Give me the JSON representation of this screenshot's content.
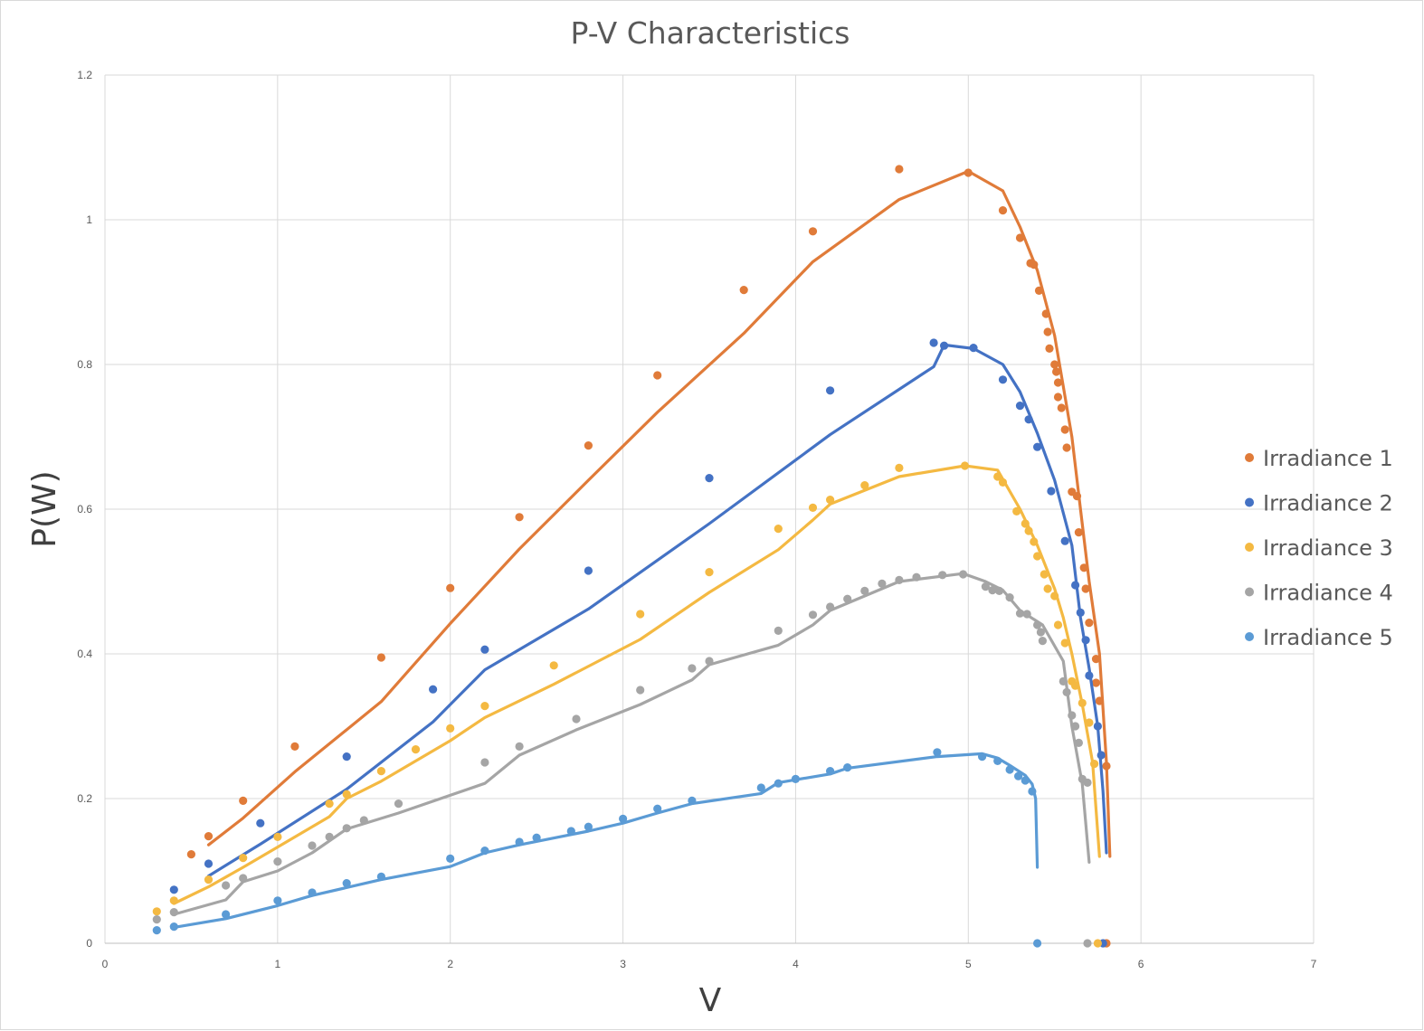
{
  "chart_data": {
    "type": "scatter",
    "title": "P-V Characteristics",
    "xlabel": "V",
    "ylabel": "P(W)",
    "xlim": [
      0,
      7
    ],
    "ylim": [
      0,
      1.2
    ],
    "xticks": [
      "0",
      "1",
      "2",
      "3",
      "4",
      "5",
      "6",
      "7"
    ],
    "yticks": [
      "0",
      "0.2",
      "0.4",
      "0.6",
      "0.8",
      "1",
      "1.2"
    ],
    "grid": true,
    "legend_position": "right",
    "series": [
      {
        "name": "Irradiance 1",
        "color": "#E07B39",
        "points": [
          [
            0.5,
            0.123
          ],
          [
            0.6,
            0.148
          ],
          [
            0.8,
            0.197
          ],
          [
            1.1,
            0.272
          ],
          [
            1.6,
            0.395
          ],
          [
            2.0,
            0.491
          ],
          [
            2.4,
            0.589
          ],
          [
            2.8,
            0.688
          ],
          [
            3.2,
            0.785
          ],
          [
            3.7,
            0.903
          ],
          [
            4.1,
            0.984
          ],
          [
            4.6,
            1.07
          ],
          [
            5.0,
            1.065
          ],
          [
            5.2,
            1.013
          ],
          [
            5.3,
            0.975
          ],
          [
            5.36,
            0.94
          ],
          [
            5.38,
            0.938
          ],
          [
            5.41,
            0.902
          ],
          [
            5.45,
            0.87
          ],
          [
            5.46,
            0.845
          ],
          [
            5.47,
            0.822
          ],
          [
            5.5,
            0.8
          ],
          [
            5.51,
            0.79
          ],
          [
            5.52,
            0.775
          ],
          [
            5.52,
            0.755
          ],
          [
            5.54,
            0.74
          ],
          [
            5.56,
            0.71
          ],
          [
            5.57,
            0.685
          ],
          [
            5.6,
            0.624
          ],
          [
            5.63,
            0.618
          ],
          [
            5.64,
            0.568
          ],
          [
            5.67,
            0.519
          ],
          [
            5.68,
            0.49
          ],
          [
            5.7,
            0.443
          ],
          [
            5.74,
            0.393
          ],
          [
            5.74,
            0.36
          ],
          [
            5.76,
            0.335
          ],
          [
            5.8,
            0.245
          ],
          [
            5.8,
            0.0
          ]
        ],
        "line": [
          [
            0.6,
            0.136
          ],
          [
            0.8,
            0.173
          ],
          [
            1.1,
            0.237
          ],
          [
            1.6,
            0.334
          ],
          [
            2.0,
            0.442
          ],
          [
            2.4,
            0.545
          ],
          [
            2.8,
            0.64
          ],
          [
            3.2,
            0.734
          ],
          [
            3.7,
            0.843
          ],
          [
            4.1,
            0.942
          ],
          [
            4.6,
            1.028
          ],
          [
            5.0,
            1.067
          ],
          [
            5.2,
            1.04
          ],
          [
            5.3,
            0.99
          ],
          [
            5.4,
            0.93
          ],
          [
            5.5,
            0.84
          ],
          [
            5.6,
            0.7
          ],
          [
            5.65,
            0.6
          ],
          [
            5.7,
            0.5
          ],
          [
            5.76,
            0.4
          ],
          [
            5.8,
            0.25
          ],
          [
            5.82,
            0.12
          ]
        ]
      },
      {
        "name": "Irradiance 2",
        "color": "#4472C4",
        "points": [
          [
            0.4,
            0.074
          ],
          [
            0.6,
            0.11
          ],
          [
            0.9,
            0.166
          ],
          [
            1.4,
            0.258
          ],
          [
            1.9,
            0.351
          ],
          [
            2.2,
            0.406
          ],
          [
            2.8,
            0.515
          ],
          [
            3.5,
            0.643
          ],
          [
            4.2,
            0.764
          ],
          [
            4.8,
            0.83
          ],
          [
            4.86,
            0.826
          ],
          [
            5.03,
            0.823
          ],
          [
            5.2,
            0.779
          ],
          [
            5.3,
            0.743
          ],
          [
            5.35,
            0.724
          ],
          [
            5.4,
            0.686
          ],
          [
            5.48,
            0.625
          ],
          [
            5.56,
            0.556
          ],
          [
            5.62,
            0.495
          ],
          [
            5.65,
            0.457
          ],
          [
            5.68,
            0.419
          ],
          [
            5.7,
            0.37
          ],
          [
            5.75,
            0.3
          ],
          [
            5.77,
            0.26
          ],
          [
            5.78,
            0.0
          ]
        ],
        "line": [
          [
            0.6,
            0.093
          ],
          [
            0.9,
            0.137
          ],
          [
            1.4,
            0.213
          ],
          [
            1.9,
            0.306
          ],
          [
            2.2,
            0.378
          ],
          [
            2.8,
            0.462
          ],
          [
            3.5,
            0.58
          ],
          [
            4.2,
            0.703
          ],
          [
            4.8,
            0.797
          ],
          [
            4.86,
            0.827
          ],
          [
            5.03,
            0.822
          ],
          [
            5.2,
            0.8
          ],
          [
            5.3,
            0.762
          ],
          [
            5.4,
            0.705
          ],
          [
            5.5,
            0.64
          ],
          [
            5.6,
            0.55
          ],
          [
            5.65,
            0.45
          ],
          [
            5.7,
            0.38
          ],
          [
            5.75,
            0.3
          ],
          [
            5.78,
            0.21
          ],
          [
            5.8,
            0.125
          ]
        ]
      },
      {
        "name": "Irradiance 3",
        "color": "#F4B942",
        "points": [
          [
            0.3,
            0.044
          ],
          [
            0.4,
            0.059
          ],
          [
            0.6,
            0.088
          ],
          [
            0.8,
            0.118
          ],
          [
            1.0,
            0.147
          ],
          [
            1.3,
            0.193
          ],
          [
            1.4,
            0.206
          ],
          [
            1.6,
            0.238
          ],
          [
            1.8,
            0.268
          ],
          [
            2.0,
            0.297
          ],
          [
            2.2,
            0.328
          ],
          [
            2.6,
            0.384
          ],
          [
            3.1,
            0.455
          ],
          [
            3.5,
            0.513
          ],
          [
            3.9,
            0.573
          ],
          [
            4.1,
            0.602
          ],
          [
            4.2,
            0.613
          ],
          [
            4.4,
            0.633
          ],
          [
            4.6,
            0.657
          ],
          [
            4.98,
            0.66
          ],
          [
            5.17,
            0.645
          ],
          [
            5.2,
            0.637
          ],
          [
            5.28,
            0.597
          ],
          [
            5.33,
            0.58
          ],
          [
            5.35,
            0.57
          ],
          [
            5.38,
            0.555
          ],
          [
            5.4,
            0.535
          ],
          [
            5.44,
            0.51
          ],
          [
            5.46,
            0.49
          ],
          [
            5.5,
            0.48
          ],
          [
            5.52,
            0.44
          ],
          [
            5.56,
            0.415
          ],
          [
            5.6,
            0.362
          ],
          [
            5.62,
            0.356
          ],
          [
            5.66,
            0.332
          ],
          [
            5.7,
            0.305
          ],
          [
            5.73,
            0.248
          ],
          [
            5.75,
            0.0
          ]
        ],
        "line": [
          [
            0.4,
            0.055
          ],
          [
            0.6,
            0.078
          ],
          [
            0.8,
            0.105
          ],
          [
            1.0,
            0.133
          ],
          [
            1.3,
            0.175
          ],
          [
            1.4,
            0.2
          ],
          [
            1.6,
            0.224
          ],
          [
            2.0,
            0.28
          ],
          [
            2.2,
            0.312
          ],
          [
            2.6,
            0.358
          ],
          [
            3.1,
            0.42
          ],
          [
            3.5,
            0.485
          ],
          [
            3.9,
            0.544
          ],
          [
            4.1,
            0.585
          ],
          [
            4.2,
            0.607
          ],
          [
            4.6,
            0.645
          ],
          [
            4.98,
            0.66
          ],
          [
            5.17,
            0.654
          ],
          [
            5.3,
            0.6
          ],
          [
            5.4,
            0.55
          ],
          [
            5.5,
            0.49
          ],
          [
            5.55,
            0.45
          ],
          [
            5.6,
            0.4
          ],
          [
            5.66,
            0.33
          ],
          [
            5.72,
            0.25
          ],
          [
            5.76,
            0.12
          ]
        ]
      },
      {
        "name": "Irradiance 4",
        "color": "#A5A5A5",
        "points": [
          [
            0.3,
            0.033
          ],
          [
            0.4,
            0.043
          ],
          [
            0.7,
            0.08
          ],
          [
            0.8,
            0.09
          ],
          [
            1.0,
            0.113
          ],
          [
            1.2,
            0.135
          ],
          [
            1.3,
            0.147
          ],
          [
            1.4,
            0.159
          ],
          [
            1.5,
            0.17
          ],
          [
            1.7,
            0.193
          ],
          [
            2.2,
            0.25
          ],
          [
            2.4,
            0.272
          ],
          [
            2.73,
            0.31
          ],
          [
            3.1,
            0.35
          ],
          [
            3.4,
            0.38
          ],
          [
            3.5,
            0.39
          ],
          [
            3.9,
            0.432
          ],
          [
            4.1,
            0.454
          ],
          [
            4.2,
            0.465
          ],
          [
            4.3,
            0.476
          ],
          [
            4.4,
            0.487
          ],
          [
            4.5,
            0.497
          ],
          [
            4.6,
            0.502
          ],
          [
            4.7,
            0.506
          ],
          [
            4.85,
            0.509
          ],
          [
            4.97,
            0.51
          ],
          [
            5.1,
            0.493
          ],
          [
            5.14,
            0.488
          ],
          [
            5.18,
            0.487
          ],
          [
            5.24,
            0.478
          ],
          [
            5.3,
            0.456
          ],
          [
            5.34,
            0.455
          ],
          [
            5.4,
            0.44
          ],
          [
            5.42,
            0.43
          ],
          [
            5.43,
            0.418
          ],
          [
            5.55,
            0.362
          ],
          [
            5.57,
            0.347
          ],
          [
            5.6,
            0.315
          ],
          [
            5.62,
            0.3
          ],
          [
            5.64,
            0.277
          ],
          [
            5.66,
            0.227
          ],
          [
            5.69,
            0.222
          ],
          [
            5.69,
            0.0
          ]
        ],
        "line": [
          [
            0.4,
            0.04
          ],
          [
            0.7,
            0.06
          ],
          [
            0.8,
            0.085
          ],
          [
            1.0,
            0.1
          ],
          [
            1.2,
            0.125
          ],
          [
            1.4,
            0.158
          ],
          [
            1.7,
            0.18
          ],
          [
            2.2,
            0.221
          ],
          [
            2.4,
            0.26
          ],
          [
            2.73,
            0.295
          ],
          [
            3.1,
            0.33
          ],
          [
            3.4,
            0.364
          ],
          [
            3.5,
            0.385
          ],
          [
            3.9,
            0.412
          ],
          [
            4.1,
            0.44
          ],
          [
            4.2,
            0.46
          ],
          [
            4.6,
            0.5
          ],
          [
            4.97,
            0.511
          ],
          [
            5.1,
            0.5
          ],
          [
            5.2,
            0.488
          ],
          [
            5.3,
            0.46
          ],
          [
            5.43,
            0.44
          ],
          [
            5.55,
            0.39
          ],
          [
            5.6,
            0.3
          ],
          [
            5.66,
            0.22
          ],
          [
            5.7,
            0.112
          ]
        ]
      },
      {
        "name": "Irradiance 5",
        "color": "#5B9BD5",
        "points": [
          [
            0.3,
            0.018
          ],
          [
            0.4,
            0.023
          ],
          [
            0.7,
            0.04
          ],
          [
            1.0,
            0.059
          ],
          [
            1.2,
            0.07
          ],
          [
            1.4,
            0.083
          ],
          [
            1.6,
            0.092
          ],
          [
            2.0,
            0.117
          ],
          [
            2.2,
            0.128
          ],
          [
            2.4,
            0.14
          ],
          [
            2.5,
            0.146
          ],
          [
            2.7,
            0.155
          ],
          [
            2.8,
            0.161
          ],
          [
            3.0,
            0.172
          ],
          [
            3.2,
            0.186
          ],
          [
            3.4,
            0.197
          ],
          [
            3.8,
            0.215
          ],
          [
            3.9,
            0.221
          ],
          [
            4.0,
            0.227
          ],
          [
            4.2,
            0.238
          ],
          [
            4.3,
            0.243
          ],
          [
            4.82,
            0.264
          ],
          [
            5.08,
            0.258
          ],
          [
            5.17,
            0.252
          ],
          [
            5.24,
            0.24
          ],
          [
            5.29,
            0.231
          ],
          [
            5.33,
            0.225
          ],
          [
            5.37,
            0.21
          ],
          [
            5.4,
            0.0
          ]
        ],
        "line": [
          [
            0.4,
            0.022
          ],
          [
            0.7,
            0.034
          ],
          [
            1.0,
            0.052
          ],
          [
            1.2,
            0.066
          ],
          [
            1.6,
            0.088
          ],
          [
            2.0,
            0.106
          ],
          [
            2.2,
            0.125
          ],
          [
            2.4,
            0.136
          ],
          [
            2.8,
            0.155
          ],
          [
            3.0,
            0.166
          ],
          [
            3.2,
            0.18
          ],
          [
            3.4,
            0.193
          ],
          [
            3.8,
            0.207
          ],
          [
            3.9,
            0.222
          ],
          [
            4.2,
            0.234
          ],
          [
            4.3,
            0.242
          ],
          [
            4.82,
            0.258
          ],
          [
            5.08,
            0.262
          ],
          [
            5.17,
            0.256
          ],
          [
            5.24,
            0.246
          ],
          [
            5.33,
            0.232
          ],
          [
            5.37,
            0.22
          ],
          [
            5.39,
            0.2
          ],
          [
            5.4,
            0.105
          ]
        ]
      }
    ]
  }
}
